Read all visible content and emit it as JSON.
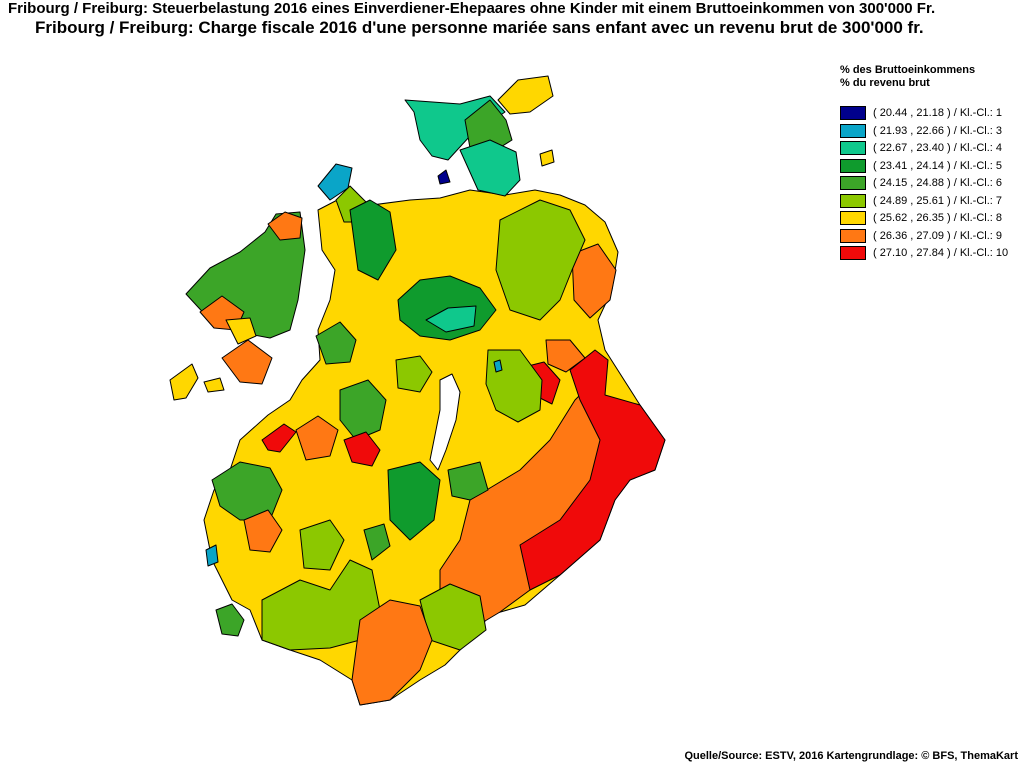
{
  "titles": {
    "line1": "Fribourg / Freiburg: Steuerbelastung 2016 eines Einverdiener-Ehepaares ohne Kinder mit einem Bruttoeinkommen von 300'000 Fr.",
    "line2": "Fribourg / Freiburg: Charge fiscale 2016 d'une personne mariée sans enfant avec un revenu brut de 300'000 fr."
  },
  "legend": {
    "heading_de": "% des Bruttoeinkommens",
    "heading_fr": "% du revenu brut",
    "classes": [
      {
        "label": "( 20.44 , 21.18 ) / Kl.-Cl.: 1",
        "color": "#00008c"
      },
      {
        "label": "( 21.93 , 22.66 ) / Kl.-Cl.: 3",
        "color": "#0aa5c8"
      },
      {
        "label": "( 22.67 , 23.40 ) / Kl.-Cl.: 4",
        "color": "#0fc88c"
      },
      {
        "label": "( 23.41 , 24.14 ) / Kl.-Cl.: 5",
        "color": "#0f9b2d"
      },
      {
        "label": "( 24.15 , 24.88 ) / Kl.-Cl.: 6",
        "color": "#3ca528"
      },
      {
        "label": "( 24.89 , 25.61 ) / Kl.-Cl.: 7",
        "color": "#8cc800"
      },
      {
        "label": "( 25.62 , 26.35 ) / Kl.-Cl.: 8",
        "color": "#ffd700"
      },
      {
        "label": "( 26.36 , 27.09 ) / Kl.-Cl.: 9",
        "color": "#ff7814"
      },
      {
        "label": "( 27.10 , 27.84 ) / Kl.-Cl.: 10",
        "color": "#f00a0a"
      }
    ]
  },
  "source": "Quelle/Source: ESTV, 2016 Kartengrundlage: © BFS, ThemaKart"
}
